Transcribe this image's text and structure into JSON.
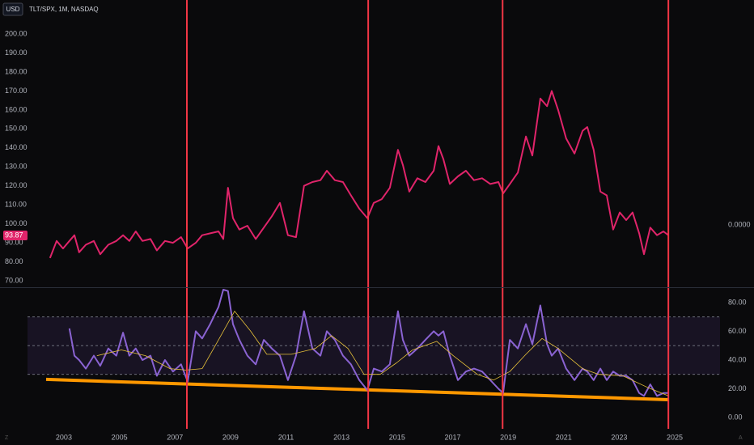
{
  "header": {
    "currency": "USD",
    "symbol": "TLT/SPX, 1M, NASDAQ",
    "corner_left": "Z",
    "corner_right": "A"
  },
  "chart_data": [
    {
      "type": "line",
      "series": [
        {
          "color": "#e0246a",
          "x": [
            2002.5,
            2002.74,
            2002.97,
            2003.2,
            2003.38,
            2003.55,
            2003.79,
            2004.08,
            2004.31,
            2004.6,
            2004.89,
            2005.13,
            2005.36,
            2005.59,
            2005.83,
            2006.12,
            2006.35,
            2006.64,
            2006.93,
            2007.22,
            2007.46,
            2007.75,
            2007.98,
            2008.27,
            2008.57,
            2008.74,
            2008.91,
            2009.09,
            2009.32,
            2009.61,
            2009.91,
            2010.2,
            2010.49,
            2010.78,
            2011.07,
            2011.36,
            2011.65,
            2011.95,
            2012.24,
            2012.47,
            2012.76,
            2013.05,
            2013.34,
            2013.64,
            2013.93,
            2014.16,
            2014.45,
            2014.74,
            2015.03,
            2015.21,
            2015.44,
            2015.73,
            2016.02,
            2016.32,
            2016.49,
            2016.67,
            2016.9,
            2017.19,
            2017.48,
            2017.77,
            2018.06,
            2018.36,
            2018.65,
            2018.82,
            2019.06,
            2019.35,
            2019.64,
            2019.87,
            2020.16,
            2020.4,
            2020.57,
            2020.8,
            2021.09,
            2021.39,
            2021.68,
            2021.85,
            2022.08,
            2022.32,
            2022.55,
            2022.78,
            2023.02,
            2023.25,
            2023.48,
            2023.72,
            2023.89,
            2024.12,
            2024.36,
            2024.59,
            2024.77
          ],
          "values": [
            82,
            91,
            87,
            91,
            94,
            85,
            89,
            91,
            84,
            89,
            91,
            94,
            91,
            96,
            91,
            92,
            86,
            91,
            90,
            93,
            87,
            90,
            94,
            95,
            96,
            92,
            119,
            103,
            97,
            99,
            92,
            98,
            104,
            111,
            94,
            93,
            120,
            122,
            123,
            128,
            123,
            122,
            115,
            108,
            103,
            111,
            113,
            119,
            139,
            131,
            117,
            124,
            122,
            128,
            141,
            134,
            121,
            125,
            128,
            123,
            124,
            121,
            122,
            116,
            121,
            127,
            146,
            136,
            166,
            162,
            170,
            160,
            145,
            137,
            149,
            151,
            139,
            117,
            115,
            97,
            106,
            102,
            106,
            95,
            84,
            98,
            94,
            96,
            94
          ]
        }
      ],
      "last_value": 93.87,
      "last_value_color": "#e0246a",
      "right_label": "0.0000",
      "xlim": [
        2000.7,
        2026.63
      ],
      "ylim": [
        66.6,
        209.4
      ],
      "yticks": [
        {
          "value": 200,
          "label": "200.00"
        },
        {
          "value": 190,
          "label": "190.00"
        },
        {
          "value": 180,
          "label": "180.00"
        },
        {
          "value": 170,
          "label": "170.00"
        },
        {
          "value": 160,
          "label": "160.00"
        },
        {
          "value": 150,
          "label": "150.00"
        },
        {
          "value": 140,
          "label": "140.00"
        },
        {
          "value": 130,
          "label": "130.00"
        },
        {
          "value": 120,
          "label": "120.00"
        },
        {
          "value": 110,
          "label": "110.00"
        },
        {
          "value": 100,
          "label": "100.00"
        },
        {
          "value": 90,
          "label": "90.00"
        },
        {
          "value": 80,
          "label": "80.00"
        },
        {
          "value": 70,
          "label": "70.00"
        }
      ],
      "vlines": [
        2007.43,
        2013.96,
        2018.8,
        2024.77
      ],
      "vline_color": "#f23645"
    },
    {
      "type": "line",
      "series": [
        {
          "color": "#8a63d2",
          "x": [
            2003.2,
            2003.38,
            2003.55,
            2003.79,
            2004.08,
            2004.31,
            2004.6,
            2004.89,
            2005.13,
            2005.36,
            2005.59,
            2005.83,
            2006.12,
            2006.35,
            2006.64,
            2006.93,
            2007.22,
            2007.46,
            2007.75,
            2007.98,
            2008.27,
            2008.57,
            2008.74,
            2008.91,
            2009.09,
            2009.32,
            2009.61,
            2009.91,
            2010.2,
            2010.49,
            2010.78,
            2011.07,
            2011.36,
            2011.65,
            2011.95,
            2012.24,
            2012.47,
            2012.76,
            2013.05,
            2013.34,
            2013.64,
            2013.93,
            2014.16,
            2014.45,
            2014.74,
            2015.03,
            2015.21,
            2015.44,
            2015.73,
            2016.02,
            2016.32,
            2016.49,
            2016.67,
            2016.9,
            2017.19,
            2017.48,
            2017.77,
            2018.06,
            2018.36,
            2018.65,
            2018.82,
            2019.06,
            2019.35,
            2019.64,
            2019.87,
            2020.16,
            2020.4,
            2020.57,
            2020.8,
            2021.09,
            2021.39,
            2021.68,
            2021.85,
            2022.08,
            2022.32,
            2022.55,
            2022.78,
            2023.02,
            2023.25,
            2023.48,
            2023.72,
            2023.89,
            2024.12,
            2024.36,
            2024.59,
            2024.77
          ],
          "values": [
            62,
            43,
            40,
            34,
            43,
            36,
            48,
            43,
            59,
            43,
            48,
            40,
            43,
            29,
            40,
            32,
            37,
            25,
            60,
            55,
            65,
            77,
            89,
            88,
            65,
            54,
            43,
            37,
            54,
            48,
            43,
            26,
            43,
            74,
            48,
            43,
            60,
            54,
            43,
            37,
            26,
            19,
            34,
            32,
            37,
            74,
            54,
            43,
            48,
            54,
            60,
            57,
            60,
            43,
            26,
            32,
            34,
            32,
            26,
            20,
            17,
            54,
            48,
            65,
            51,
            78,
            51,
            43,
            48,
            34,
            26,
            34,
            32,
            26,
            34,
            26,
            32,
            29,
            29,
            26,
            17,
            15,
            23,
            15,
            17,
            17
          ]
        },
        {
          "color": "#e8c33a",
          "x": [
            2004.19,
            2005.07,
            2005.94,
            2006.82,
            2007.4,
            2007.98,
            2008.57,
            2009.15,
            2009.73,
            2010.31,
            2011.19,
            2012.06,
            2012.64,
            2013.23,
            2013.81,
            2014.39,
            2014.98,
            2015.56,
            2016.43,
            2017.02,
            2017.89,
            2018.47,
            2019.06,
            2019.64,
            2020.22,
            2020.8,
            2021.68,
            2022.26,
            2023.13,
            2024.01,
            2024.77
          ],
          "values": [
            43,
            47,
            43,
            34,
            33,
            34,
            54,
            74,
            60,
            44,
            44,
            48,
            57,
            48,
            30,
            30,
            38,
            47,
            53,
            43,
            30,
            26,
            32,
            44,
            55,
            48,
            34,
            30,
            29,
            21,
            15
          ]
        }
      ],
      "trendline": {
        "x": [
          2002.36,
          2024.77
        ],
        "values": [
          26.5,
          12.4
        ],
        "color": "#ff9800"
      },
      "band": [
        30,
        70
      ],
      "hlines": [
        70,
        50,
        30
      ],
      "xlim": [
        2000.7,
        2026.63
      ],
      "xticks": [
        2003,
        2005,
        2007,
        2009,
        2011,
        2013,
        2015,
        2017,
        2019,
        2021,
        2023,
        2025
      ],
      "ylim": [
        -7.9,
        90.1
      ],
      "yticks": [
        {
          "value": 80,
          "label": "80.00"
        },
        {
          "value": 60,
          "label": "60.00"
        },
        {
          "value": 40,
          "label": "40.00"
        },
        {
          "value": 20,
          "label": "20.00"
        },
        {
          "value": 0,
          "label": "0.00"
        }
      ],
      "vlines": [
        2007.43,
        2013.96,
        2018.8,
        2024.77
      ],
      "vline_color": "#f23645"
    }
  ]
}
